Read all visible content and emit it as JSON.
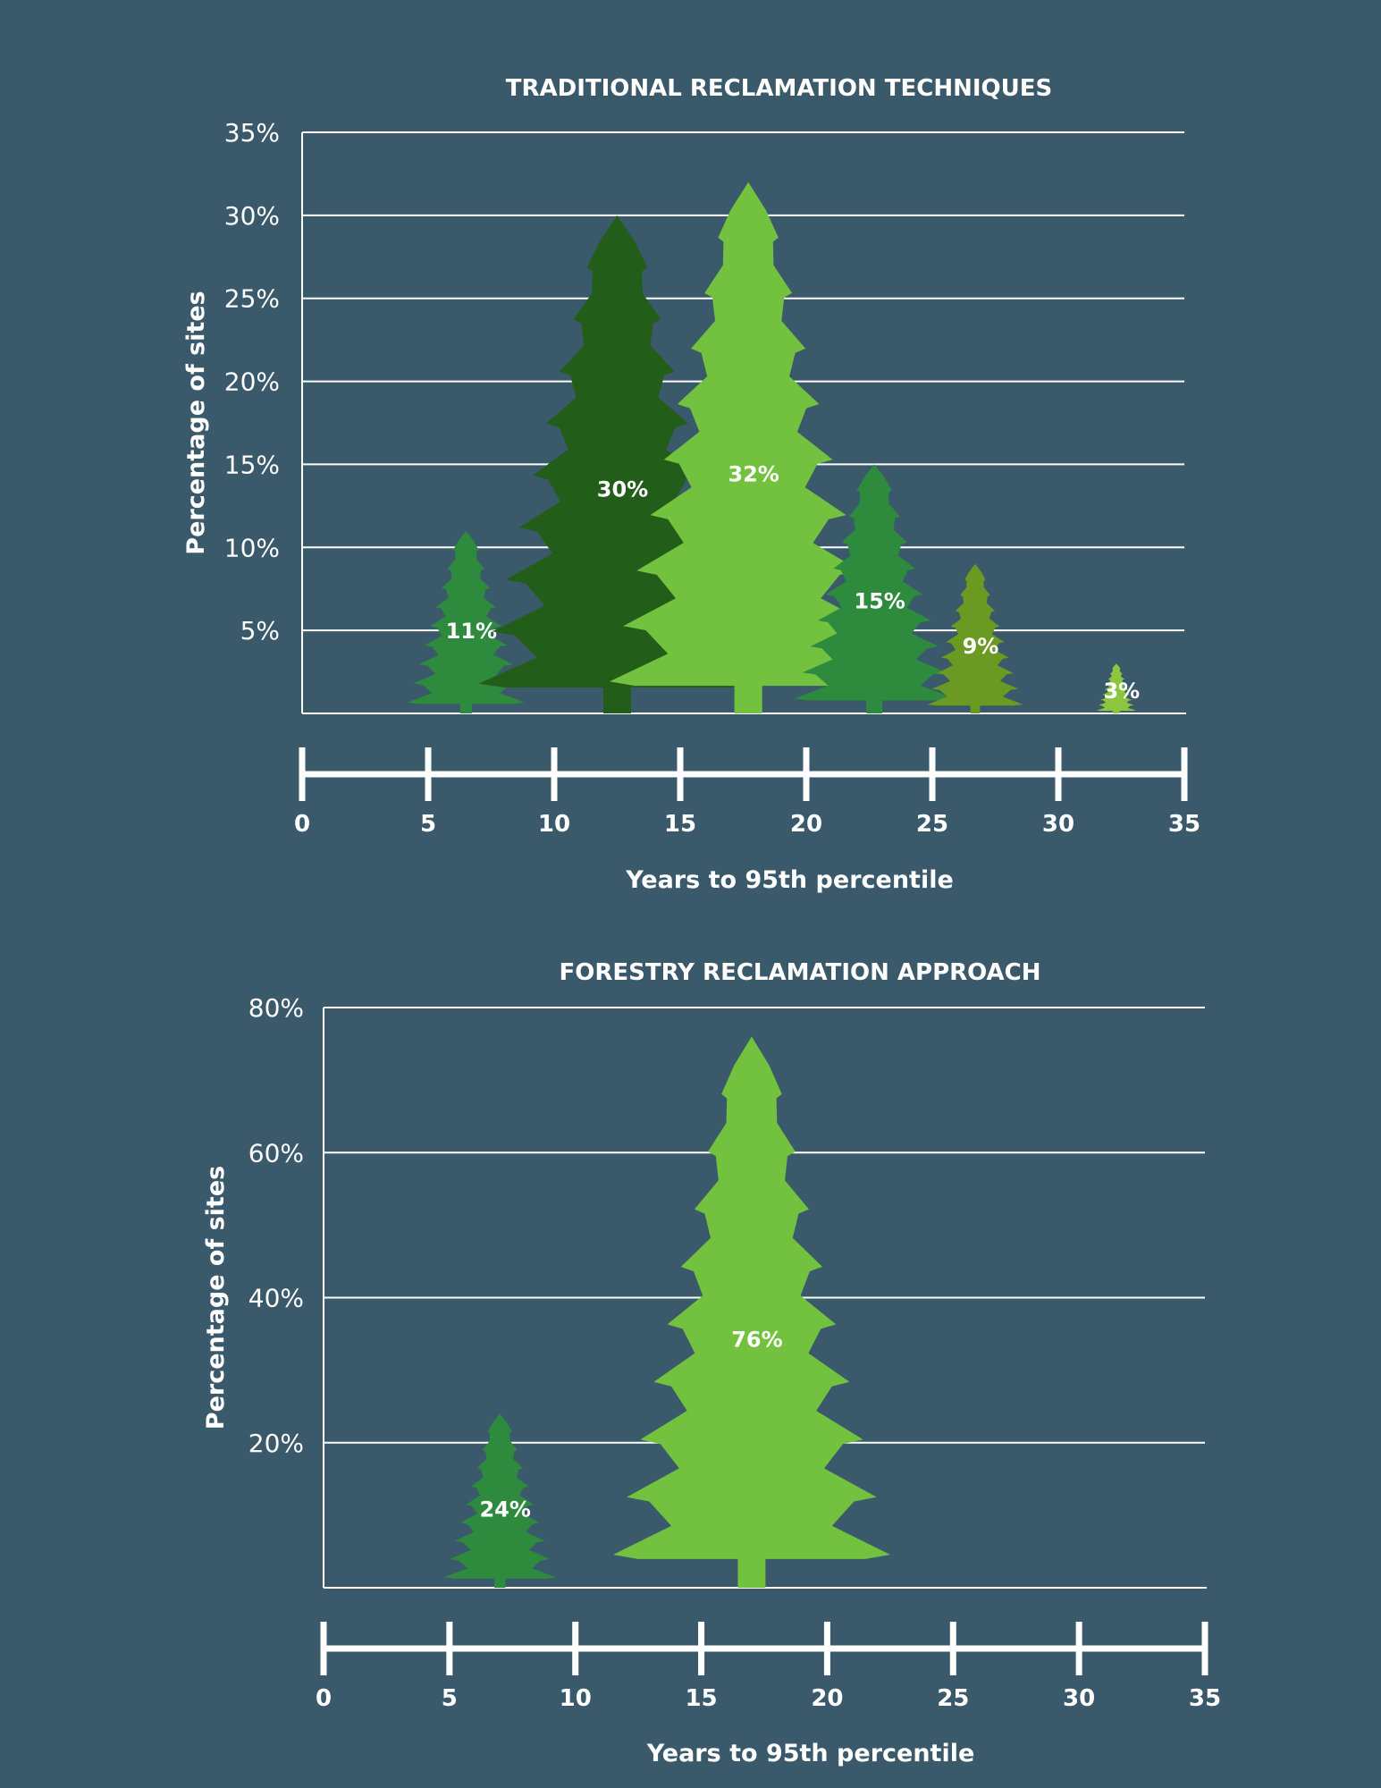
{
  "chart_data": [
    {
      "type": "bar",
      "title": "TRADITIONAL RECLAMATION TECHNIQUES",
      "xlabel": "Years to 95th percentile",
      "ylabel": "Percentage of sites",
      "ylim": [
        0,
        35
      ],
      "yticks": [
        5,
        10,
        15,
        20,
        25,
        30,
        35
      ],
      "ytick_labels": [
        "5%",
        "10%",
        "15%",
        "20%",
        "25%",
        "30%",
        "35%"
      ],
      "xlim": [
        0,
        35
      ],
      "xticks": [
        0,
        5,
        10,
        15,
        20,
        25,
        30,
        35
      ],
      "xtick_labels": [
        "0",
        "5",
        "10",
        "15",
        "20",
        "25",
        "30",
        "35"
      ],
      "grid": true,
      "points": [
        {
          "x": 6.5,
          "value": 11,
          "label": "11%",
          "color": "#2e8b3e"
        },
        {
          "x": 12.5,
          "value": 30,
          "label": "30%",
          "color": "#235d1a"
        },
        {
          "x": 17.7,
          "value": 32,
          "label": "32%",
          "color": "#72c23f"
        },
        {
          "x": 22.7,
          "value": 15,
          "label": "15%",
          "color": "#2e8b3e"
        },
        {
          "x": 26.7,
          "value": 9,
          "label": "9%",
          "color": "#6a9a22"
        },
        {
          "x": 32.3,
          "value": 3,
          "label": "3%",
          "color": "#8cc63f"
        }
      ]
    },
    {
      "type": "bar",
      "title": "FORESTRY RECLAMATION APPROACH",
      "xlabel": "Years to 95th percentile",
      "ylabel": "Percentage of sites",
      "ylim": [
        0,
        80
      ],
      "yticks": [
        20,
        40,
        60,
        80
      ],
      "ytick_labels": [
        "20%",
        "40%",
        "60%",
        "80%"
      ],
      "xlim": [
        0,
        35
      ],
      "xticks": [
        0,
        5,
        10,
        15,
        20,
        25,
        30,
        35
      ],
      "xtick_labels": [
        "0",
        "5",
        "10",
        "15",
        "20",
        "25",
        "30",
        "35"
      ],
      "grid": true,
      "points": [
        {
          "x": 7,
          "value": 24,
          "label": "24%",
          "color": "#2e8b3e"
        },
        {
          "x": 17,
          "value": 76,
          "label": "76%",
          "color": "#72c23f"
        }
      ]
    }
  ]
}
